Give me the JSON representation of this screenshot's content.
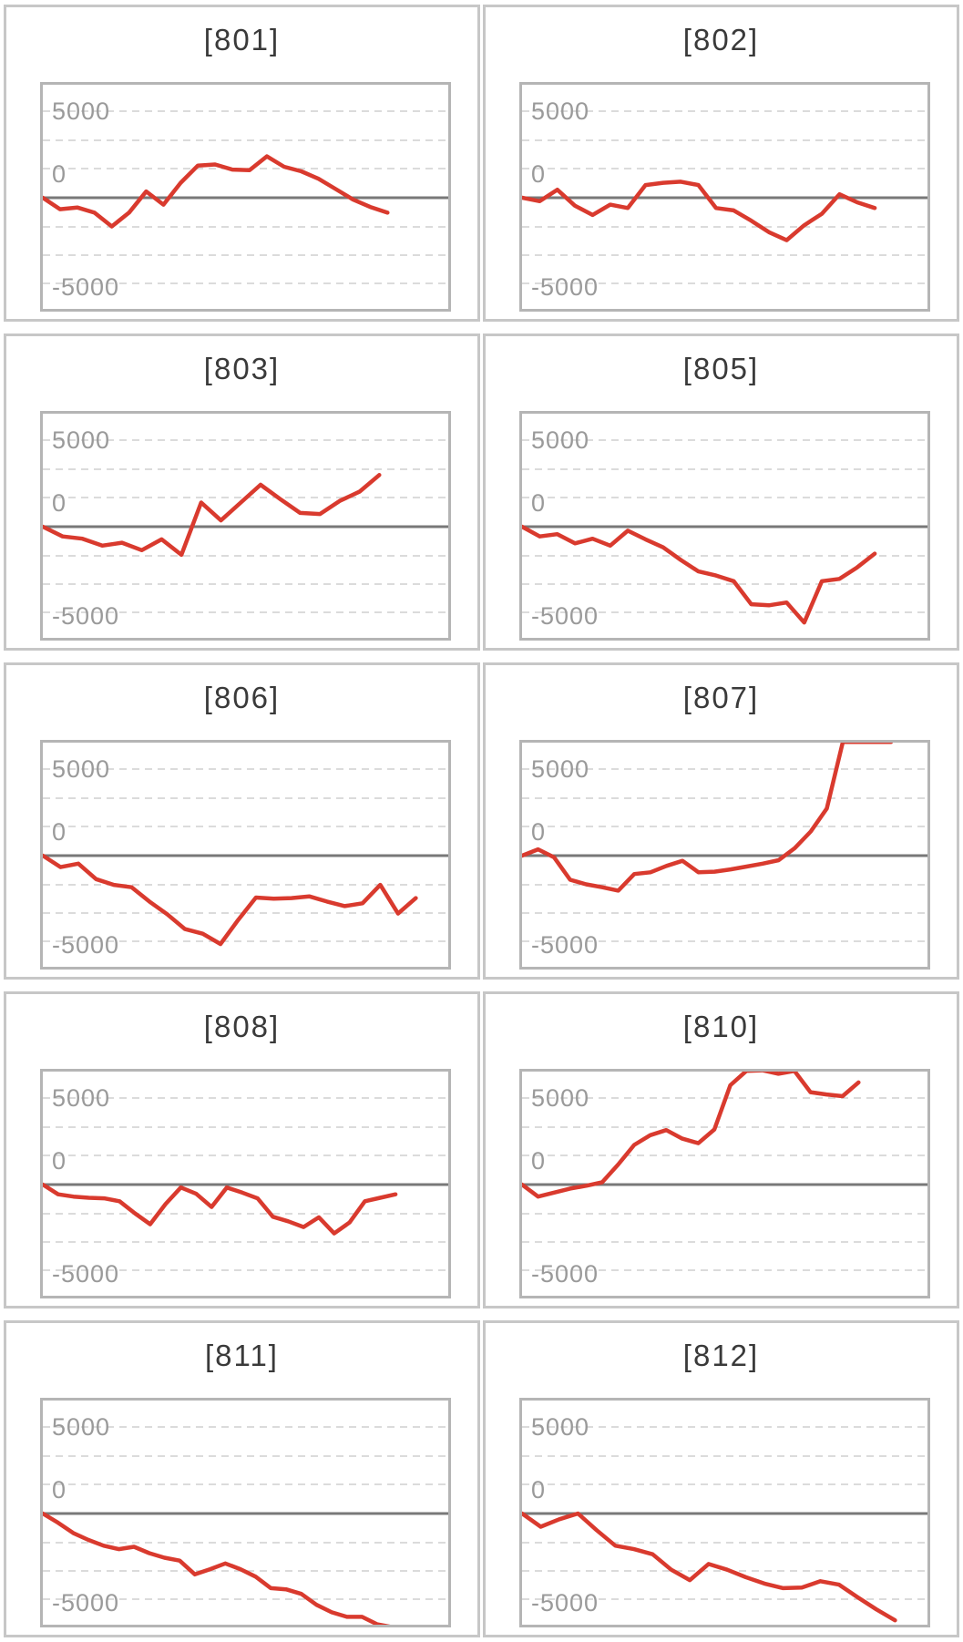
{
  "page": {
    "background": "#ffffff",
    "description": "Grid of 10 machine slump line graphs labeled by machine number"
  },
  "colors": {
    "line_red": "#d93a2e",
    "title_text": "#3a3a3a",
    "axis_label": "#9a9a9a",
    "grid_dashed": "#cfcfcf",
    "zero_line": "#787878",
    "plot_border": "#b5b5b5",
    "panel_border": "#c7c7c7"
  },
  "axis": {
    "tick_labels": [
      "5000",
      "0",
      "-5000"
    ],
    "tick_values": [
      5000,
      0,
      -5000
    ],
    "ylim": [
      -10000,
      10000
    ],
    "grid_interval": 2500,
    "grid": "dashed horizontal lines, solid dark line at 0"
  },
  "chart_data": [
    {
      "type": "line",
      "title": "[801]",
      "ylim": [
        -10000,
        10000
      ],
      "yticks": [
        5000,
        0,
        -5000
      ],
      "x_span_frac": 0.85,
      "series": [
        {
          "name": "slump",
          "values": [
            0,
            -1000,
            -850,
            -1300,
            -2500,
            -1300,
            550,
            -600,
            1300,
            2800,
            2900,
            2450,
            2400,
            3600,
            2700,
            2300,
            1650,
            750,
            -150,
            -800,
            -1300
          ]
        }
      ]
    },
    {
      "type": "line",
      "title": "[802]",
      "ylim": [
        -10000,
        10000
      ],
      "yticks": [
        5000,
        0,
        -5000
      ],
      "x_span_frac": 0.87,
      "series": [
        {
          "name": "slump",
          "values": [
            0,
            -300,
            700,
            -700,
            -1500,
            -600,
            -900,
            1100,
            1300,
            1400,
            1100,
            -900,
            -1100,
            -2000,
            -3000,
            -3700,
            -2400,
            -1400,
            300,
            -400,
            -900
          ]
        }
      ]
    },
    {
      "type": "line",
      "title": "[803]",
      "ylim": [
        -10000,
        10000
      ],
      "yticks": [
        5000,
        0,
        -5000
      ],
      "x_span_frac": 0.83,
      "series": [
        {
          "name": "slump",
          "values": [
            0,
            -850,
            -1050,
            -1650,
            -1400,
            -2050,
            -1100,
            -2450,
            2100,
            550,
            2100,
            3650,
            2400,
            1200,
            1100,
            2250,
            3050,
            4500
          ]
        }
      ]
    },
    {
      "type": "line",
      "title": "[805]",
      "ylim": [
        -10000,
        10000
      ],
      "yticks": [
        5000,
        0,
        -5000
      ],
      "x_span_frac": 0.87,
      "series": [
        {
          "name": "slump",
          "values": [
            0,
            -850,
            -650,
            -1450,
            -1050,
            -1650,
            -350,
            -1100,
            -1800,
            -2900,
            -3900,
            -4250,
            -4750,
            -6750,
            -6850,
            -6600,
            -8350,
            -4750,
            -4550,
            -3550,
            -2350
          ]
        }
      ]
    },
    {
      "type": "line",
      "title": "[806]",
      "ylim": [
        -10000,
        10000
      ],
      "yticks": [
        5000,
        0,
        -5000
      ],
      "x_span_frac": 0.92,
      "series": [
        {
          "name": "slump",
          "values": [
            0,
            -1000,
            -700,
            -2050,
            -2550,
            -2750,
            -4000,
            -5100,
            -6400,
            -6800,
            -7700,
            -5600,
            -3650,
            -3750,
            -3700,
            -3550,
            -4000,
            -4400,
            -4150,
            -2550,
            -5050,
            -3700
          ]
        }
      ]
    },
    {
      "type": "line",
      "title": "[807]",
      "ylim": [
        -10000,
        10000
      ],
      "yticks": [
        5000,
        0,
        -5000
      ],
      "x_span_frac": 0.91,
      "series": [
        {
          "name": "slump",
          "values": [
            0,
            550,
            -150,
            -2100,
            -2500,
            -2750,
            -3050,
            -1600,
            -1450,
            -900,
            -450,
            -1450,
            -1400,
            -1200,
            -950,
            -700,
            -400,
            650,
            2100,
            4100,
            9900,
            9900,
            9900,
            9900
          ]
        }
      ]
    },
    {
      "type": "line",
      "title": "[808]",
      "ylim": [
        -10000,
        10000
      ],
      "yticks": [
        5000,
        0,
        -5000
      ],
      "x_span_frac": 0.87,
      "series": [
        {
          "name": "slump",
          "values": [
            0,
            -850,
            -1050,
            -1150,
            -1200,
            -1450,
            -2500,
            -3450,
            -1700,
            -250,
            -800,
            -1950,
            -250,
            -700,
            -1200,
            -2800,
            -3200,
            -3700,
            -2850,
            -4250,
            -3300,
            -1450,
            -1150,
            -850
          ]
        }
      ]
    },
    {
      "type": "line",
      "title": "[810]",
      "ylim": [
        -10000,
        10000
      ],
      "yticks": [
        5000,
        0,
        -5000
      ],
      "x_span_frac": 0.83,
      "series": [
        {
          "name": "slump",
          "values": [
            0,
            -1050,
            -700,
            -350,
            -100,
            200,
            1750,
            3450,
            4300,
            4750,
            4000,
            3600,
            4800,
            8650,
            9900,
            9950,
            9650,
            9900,
            8050,
            7850,
            7700,
            8900
          ]
        }
      ]
    },
    {
      "type": "line",
      "title": "[811]",
      "ylim": [
        -10000,
        10000
      ],
      "yticks": [
        5000,
        0,
        -5000
      ],
      "x_span_frac": 0.9,
      "series": [
        {
          "name": "slump",
          "values": [
            0,
            -800,
            -1700,
            -2300,
            -2800,
            -3100,
            -2900,
            -3450,
            -3850,
            -4100,
            -5300,
            -4850,
            -4350,
            -4850,
            -5500,
            -6500,
            -6600,
            -7000,
            -7950,
            -8600,
            -9000,
            -9000,
            -9650,
            -9900,
            -9900
          ]
        }
      ]
    },
    {
      "type": "line",
      "title": "[812]",
      "ylim": [
        -10000,
        10000
      ],
      "yticks": [
        5000,
        0,
        -5000
      ],
      "x_span_frac": 0.92,
      "series": [
        {
          "name": "slump",
          "values": [
            0,
            -1150,
            -500,
            0,
            -1450,
            -2800,
            -3100,
            -3550,
            -4900,
            -5800,
            -4400,
            -4900,
            -5550,
            -6100,
            -6500,
            -6450,
            -5900,
            -6200,
            -7300,
            -8350,
            -9300
          ]
        }
      ]
    }
  ]
}
